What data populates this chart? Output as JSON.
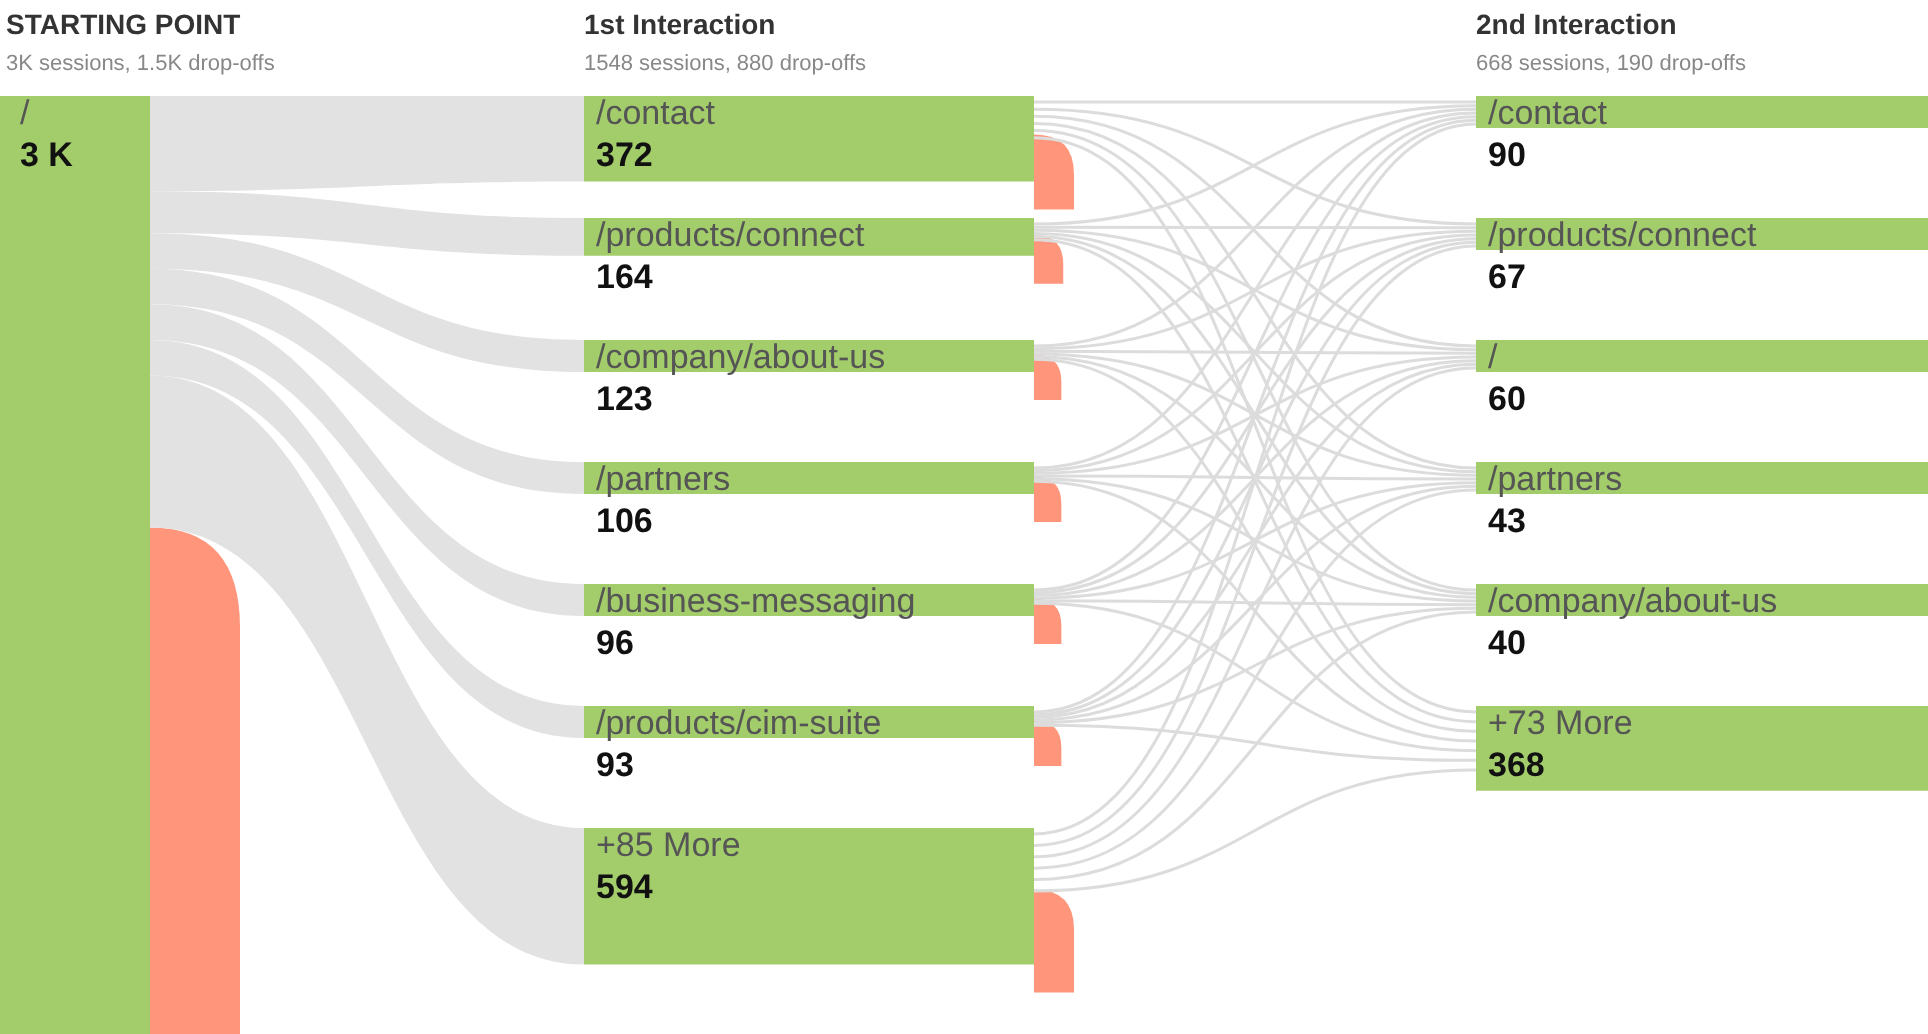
{
  "chart_data": [
    {
      "type": "other",
      "title": "STARTING POINT",
      "subtitle": "3K sessions, 1.5K drop-offs",
      "categories": [
        "/"
      ],
      "values": [
        3000
      ],
      "value_labels": [
        "3 K"
      ]
    },
    {
      "type": "other",
      "title": "1st Interaction",
      "subtitle": "1548 sessions, 880 drop-offs",
      "categories": [
        "/contact",
        "/products/connect",
        "/company/about-us",
        "/partners",
        "/business-messaging",
        "/products/cim-suite",
        "+85 More"
      ],
      "values": [
        372,
        164,
        123,
        106,
        96,
        93,
        594
      ],
      "data_labels": true
    },
    {
      "type": "other",
      "title": "2nd Interaction",
      "subtitle": "668 sessions, 190 drop-offs",
      "categories": [
        "/contact",
        "/products/connect",
        "/",
        "/partners",
        "/company/about-us",
        "+73 More"
      ],
      "values": [
        90,
        67,
        60,
        43,
        40,
        368
      ],
      "data_labels": true
    }
  ]
}
